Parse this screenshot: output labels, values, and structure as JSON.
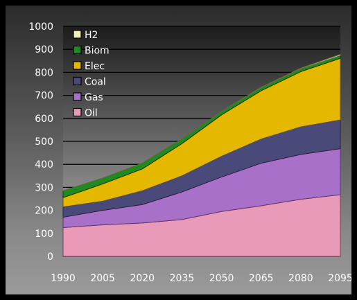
{
  "colors": {
    "background": "#000000",
    "plot_gradient_top": "#1c1c1c",
    "plot_gradient_bottom": "#b6b6b6",
    "gridline": "#000000",
    "tick_text": "#ffffff"
  },
  "chart_data": {
    "type": "area",
    "stacked": true,
    "title": "",
    "xlabel": "",
    "ylabel": "",
    "x": [
      1990,
      2005,
      2020,
      2035,
      2050,
      2065,
      2080,
      2095
    ],
    "xticks": [
      "1990",
      "2005",
      "2020",
      "2035",
      "2050",
      "2065",
      "2080",
      "2095"
    ],
    "yticks": [
      "0",
      "100",
      "200",
      "300",
      "400",
      "500",
      "600",
      "700",
      "800",
      "900",
      "1000"
    ],
    "ylim": [
      0,
      1000
    ],
    "grid": "horizontal",
    "legend_position": "top-left",
    "series": [
      {
        "name": "Oil",
        "color": "#e89ab8",
        "edge": "#7a3d55",
        "values": [
          125,
          137,
          145,
          160,
          195,
          220,
          248,
          268
        ]
      },
      {
        "name": "Gas",
        "color": "#a870c8",
        "edge": "#5a3570",
        "values": [
          45,
          63,
          80,
          120,
          150,
          185,
          195,
          200
        ]
      },
      {
        "name": "Coal",
        "color": "#4a4a7a",
        "edge": "#22223a",
        "values": [
          45,
          40,
          60,
          70,
          90,
          105,
          120,
          125
        ]
      },
      {
        "name": "Elec",
        "color": "#e4b800",
        "edge": "#6a5600",
        "values": [
          40,
          75,
          95,
          140,
          180,
          210,
          240,
          268
        ]
      },
      {
        "name": "Biom",
        "color": "#1f8a1f",
        "edge": "#0b3f0b",
        "values": [
          30,
          25,
          25,
          20,
          15,
          13,
          12,
          12
        ]
      },
      {
        "name": "H2",
        "color": "#f0f0b8",
        "edge": "#6d6d40",
        "values": [
          0,
          0,
          0,
          0,
          0,
          2,
          3,
          5
        ]
      }
    ],
    "legend_order": [
      "H2",
      "Biom",
      "Elec",
      "Coal",
      "Gas",
      "Oil"
    ]
  }
}
